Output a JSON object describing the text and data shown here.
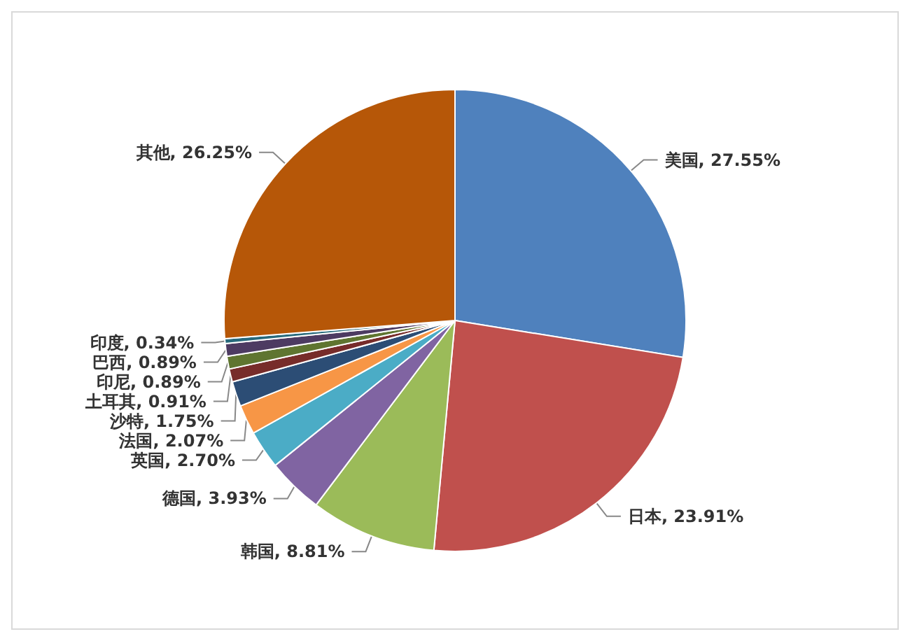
{
  "chart_data": {
    "type": "pie",
    "categories": [
      "美国",
      "日本",
      "韩国",
      "德国",
      "英国",
      "法国",
      "沙特",
      "土耳其",
      "印尼",
      "巴西",
      "印度",
      "其他"
    ],
    "values": [
      27.55,
      23.91,
      8.81,
      3.93,
      2.7,
      2.07,
      1.75,
      0.91,
      0.89,
      0.89,
      0.34,
      26.25
    ],
    "value_labels": [
      ", 27.55%",
      ", 23.91%",
      ", 8.81%",
      ", 3.93%",
      ", 2.70%",
      ", 2.07%",
      ", 1.75%",
      ", 0.91%",
      ", 0.89%",
      ", 0.89%",
      ", 0.34%",
      ", 26.25%"
    ],
    "colors": [
      "#4f81bd",
      "#c0504d",
      "#9bbb59",
      "#8064a2",
      "#4bacc6",
      "#f79646",
      "#2c4d75",
      "#772c2a",
      "#5f7530",
      "#4d3b62",
      "#276a7c",
      "#b65708"
    ],
    "legend": false
  }
}
